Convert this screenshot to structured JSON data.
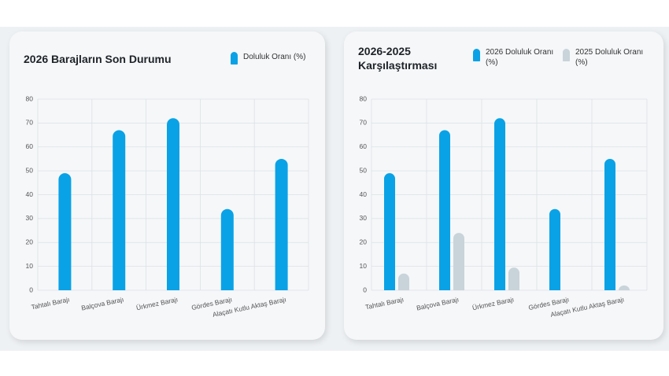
{
  "chart_data": [
    {
      "type": "bar",
      "title": "2026 Barajların Son Durumu",
      "categories": [
        "Tahtalı Barajı",
        "Balçova Barajı",
        "Ürkmez Barajı",
        "Gördes Barajı",
        "Alaçatı Kutlu Aktaş Barajı"
      ],
      "series": [
        {
          "name": "Doluluk Oranı (%)",
          "color": "#0aa2e6",
          "values": [
            49,
            67,
            72,
            34,
            55
          ]
        }
      ],
      "ylim": [
        0,
        80
      ],
      "yticks": [
        0,
        10,
        20,
        30,
        40,
        50,
        60,
        70,
        80
      ],
      "grid": true
    },
    {
      "type": "bar",
      "title": "2026-2025 Karşılaştırması",
      "categories": [
        "Tahtalı Barajı",
        "Balçova Barajı",
        "Ürkmez Barajı",
        "Gördes Barajı",
        "Alaçatı Kutlu Aktaş Barajı"
      ],
      "series": [
        {
          "name": "2026 Doluluk Oranı (%)",
          "color": "#0aa2e6",
          "values": [
            49,
            67,
            72,
            34,
            55
          ]
        },
        {
          "name": "2025 Doluluk Oranı (%)",
          "color": "#c9d4da",
          "values": [
            7,
            24,
            9.5,
            0,
            2
          ]
        }
      ],
      "ylim": [
        0,
        80
      ],
      "yticks": [
        0,
        10,
        20,
        30,
        40,
        50,
        60,
        70,
        80
      ],
      "grid": true
    }
  ]
}
